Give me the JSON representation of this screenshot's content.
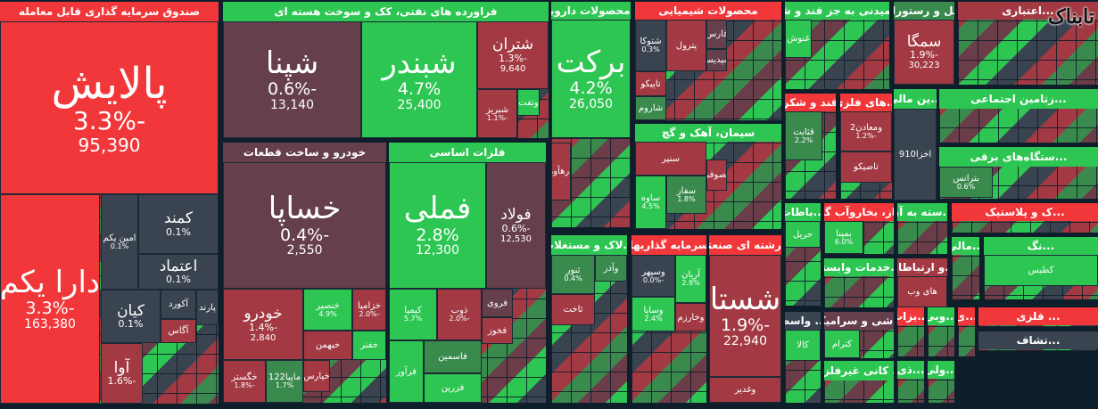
{
  "colors": {
    "red": "#f1373a",
    "green": "#2ec653",
    "maroon": "#653f4c",
    "darkred": "#a33a43",
    "slate": "#3a4450",
    "darkgreen": "#3a8a4e",
    "background": "#0f1e2b"
  },
  "logo": "تابناک",
  "sectors": [
    {
      "title": "صندوق سرمایه گذاری قابل معامله",
      "color": "red",
      "tiles": [
        {
          "name": "پالایش",
          "pct": "-3.3%",
          "price": "95,390",
          "color": "red"
        },
        {
          "name": "دارا یکم",
          "pct": "-3.3%",
          "price": "163,380",
          "color": "red"
        },
        {
          "name": "کمند",
          "pct": "0.1%",
          "color": "slate"
        },
        {
          "name": "امین یکم",
          "pct": "0.1%",
          "color": "slate"
        },
        {
          "name": "اعتماد",
          "pct": "0.1%",
          "color": "slate"
        },
        {
          "name": "کیان",
          "pct": "0.1%",
          "color": "slate"
        },
        {
          "name": "آکورد",
          "color": "slate"
        },
        {
          "name": "پارند",
          "color": "slate"
        },
        {
          "name": "آگاس",
          "color": "darkred"
        },
        {
          "name": "آوا",
          "pct": "-1.6%",
          "color": "darkred"
        }
      ]
    },
    {
      "title": "فراورده های نفتی، کک و سوخت هسته ای",
      "color": "green",
      "tiles": [
        {
          "name": "شپنا",
          "pct": "-0.6%",
          "price": "13,140",
          "color": "maroon"
        },
        {
          "name": "شبندر",
          "pct": "4.7%",
          "price": "25,400",
          "color": "green"
        },
        {
          "name": "شتران",
          "pct": "-1.3%",
          "price": "9,640",
          "color": "darkred"
        },
        {
          "name": "شبریز",
          "pct": "-1.1%",
          "color": "darkred"
        },
        {
          "name": "وتفت",
          "color": "green"
        }
      ]
    },
    {
      "title": "خودرو و ساخت قطعات",
      "color": "maroon",
      "tiles": [
        {
          "name": "خساپا",
          "pct": "-0.4%",
          "price": "2,550",
          "color": "maroon"
        },
        {
          "name": "خودرو",
          "pct": "-1.4%",
          "price": "2,840",
          "color": "darkred"
        },
        {
          "name": "خنصیر",
          "pct": "4.9%",
          "color": "green"
        },
        {
          "name": "خزامیا",
          "pct": "-2.0%",
          "color": "darkred"
        },
        {
          "name": "خبهمن",
          "color": "darkred"
        },
        {
          "name": "خفنر",
          "color": "green"
        },
        {
          "name": "خگستر",
          "pct": "-1.8%",
          "color": "darkred"
        },
        {
          "name": "ماپیا122",
          "pct": "1.7%",
          "color": "darkgreen"
        },
        {
          "name": "خپارس",
          "color": "darkred"
        }
      ]
    },
    {
      "title": "فلزات اساسی",
      "color": "green",
      "tiles": [
        {
          "name": "فملی",
          "pct": "2.8%",
          "price": "12,300",
          "color": "green"
        },
        {
          "name": "فولاد",
          "pct": "-0.6%",
          "price": "12,530",
          "color": "maroon"
        },
        {
          "name": "کیمیا",
          "pct": "5.7%",
          "color": "green"
        },
        {
          "name": "ذوب",
          "pct": "-2.0%",
          "color": "darkred"
        },
        {
          "name": "فروی",
          "color": "maroon"
        },
        {
          "name": "فخوز",
          "color": "darkred"
        },
        {
          "name": "فرآور",
          "color": "green"
        },
        {
          "name": "فاسمین",
          "color": "darkgreen"
        },
        {
          "name": "فزرین",
          "color": "green"
        }
      ]
    },
    {
      "title": "...محصولات دارویی",
      "color": "green",
      "tiles": [
        {
          "name": "برکت",
          "pct": "4.2%",
          "price": "26,050",
          "color": "green"
        },
        {
          "name": "درهآور",
          "color": "darkred"
        }
      ]
    },
    {
      "title": "محصولات شیمیایی",
      "color": "red",
      "tiles": [
        {
          "name": "شتوکا",
          "pct": "0.3%",
          "color": "slate"
        },
        {
          "name": "پترول",
          "color": "darkred"
        },
        {
          "name": "فارس",
          "color": "maroon"
        },
        {
          "name": "شپدیس",
          "color": "maroon"
        },
        {
          "name": "تاپیکو",
          "color": "darkred"
        },
        {
          "name": "شاروم",
          "color": "darkgreen"
        }
      ]
    },
    {
      "title": "سیمان، آهک و گچ",
      "color": "green",
      "tiles": [
        {
          "name": "سنیر",
          "color": "darkred"
        },
        {
          "name": "مصوفی",
          "color": "darkred"
        },
        {
          "name": "ساوه",
          "pct": "4.5%",
          "color": "green"
        },
        {
          "name": "سفار",
          "pct": "1.8%",
          "color": "darkgreen"
        }
      ]
    },
    {
      "title": "...امیدنی به جز قند و شکر",
      "color": "green",
      "tiles": [
        {
          "name": "غنوش",
          "color": "green"
        }
      ]
    },
    {
      "title": "هتل و رستوران",
      "color": "darkgreen",
      "tiles": [
        {
          "name": "سمگا",
          "pct": "-1.9%",
          "price": "30,223",
          "color": "darkred"
        }
      ]
    },
    {
      "title": "...اعتباری",
      "color": "darkred",
      "tiles": []
    },
    {
      "title": "قند و شکر",
      "color": "red",
      "tiles": [
        {
          "name": "قثابت",
          "pct": "2.2%",
          "color": "darkgreen"
        }
      ]
    },
    {
      "title": "...های فلزی",
      "color": "red",
      "tiles": [
        {
          "name": "ومعادن2",
          "pct": "-1.2%",
          "color": "darkred"
        },
        {
          "name": "تاصیکو",
          "color": "darkred"
        }
      ]
    },
    {
      "title": "...ین مالی",
      "color": "green",
      "tiles": [
        {
          "name": "اخزا910",
          "color": "slate"
        }
      ]
    },
    {
      "title": "...زتامین اجتماعی",
      "color": "green",
      "tiles": []
    },
    {
      "title": "...ستگاه‌های برقی",
      "color": "green",
      "tiles": [
        {
          "name": "بترانس",
          "pct": "0.6%",
          "color": "darkgreen"
        }
      ]
    },
    {
      "title": "...لاک و مستغلات",
      "color": "green",
      "tiles": [
        {
          "name": "ثنور",
          "pct": "0.4%",
          "color": "darkgreen"
        },
        {
          "name": "وآذر",
          "color": "darkgreen"
        },
        {
          "name": "ثاخت",
          "color": "darkred"
        }
      ]
    },
    {
      "title": "سرمایه گذاریها",
      "color": "red",
      "tiles": [
        {
          "name": "وسپهر",
          "pct": "-0.0%",
          "color": "slate"
        },
        {
          "name": "آریان",
          "pct": "2.8%",
          "color": "green"
        },
        {
          "name": "وساپا",
          "pct": "2.4%",
          "color": "green"
        },
        {
          "name": "وخارزم",
          "color": "darkred"
        }
      ]
    },
    {
      "title": "...رشته ای صنعتی",
      "color": "red",
      "tiles": [
        {
          "name": "شستا",
          "pct": "-1.9%",
          "price": "22,940",
          "color": "darkred"
        },
        {
          "name": "وغدیر",
          "color": "darkred"
        }
      ]
    },
    {
      "title": "...باطات",
      "color": "green",
      "tiles": [
        {
          "name": "حریل",
          "color": "green"
        }
      ]
    },
    {
      "title": "...از، بخاروآب گرم",
      "color": "red",
      "tiles": [
        {
          "name": "بمپنا",
          "pct": "6.0%",
          "color": "green"
        }
      ]
    },
    {
      "title": "...سته به آن",
      "color": "green",
      "tiles": []
    },
    {
      "title": "...ک و پلاستیک",
      "color": "red",
      "tiles": []
    },
    {
      "title": "...خدمات وابسته",
      "color": "green",
      "tiles": []
    },
    {
      "title": "...و ارتباطات",
      "color": "darkred",
      "tiles": [
        {
          "name": "های وب",
          "color": "darkred"
        }
      ]
    },
    {
      "title": "...مالی",
      "color": "green",
      "tiles": []
    },
    {
      "title": "...نگ",
      "color": "green",
      "tiles": [
        {
          "name": "کطبس",
          "color": "green"
        }
      ]
    },
    {
      "title": "... واسط",
      "color": "slate",
      "tiles": [
        {
          "name": "کالا",
          "color": "green"
        }
      ]
    },
    {
      "title": "کاشی و سرامیک",
      "color": "maroon",
      "tiles": [
        {
          "name": "کترام",
          "color": "green"
        }
      ]
    },
    {
      "title": "... کانی غیرفلزی",
      "color": "green",
      "tiles": []
    },
    {
      "title": "...یزات",
      "color": "red",
      "tiles": []
    },
    {
      "title": "...وبی",
      "color": "green",
      "tiles": []
    },
    {
      "title": "...ی",
      "color": "red",
      "tiles": []
    },
    {
      "title": "... فلزی",
      "color": "red",
      "tiles": []
    },
    {
      "title": "...تشاف",
      "color": "slate",
      "tiles": []
    },
    {
      "title": "...ذی",
      "color": "green",
      "tiles": []
    },
    {
      "title": "...ولی",
      "color": "green",
      "tiles": []
    }
  ]
}
